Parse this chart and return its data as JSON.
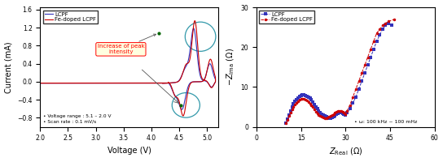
{
  "cv_xlim": [
    2.0,
    5.2
  ],
  "cv_ylim": [
    -1.0,
    1.65
  ],
  "cv_xticks": [
    2.0,
    2.5,
    3.0,
    3.5,
    4.0,
    4.5,
    5.0
  ],
  "cv_yticks": [
    -0.8,
    -0.4,
    0.0,
    0.4,
    0.8,
    1.2,
    1.6
  ],
  "cv_xlabel": "Voltage (V)",
  "cv_ylabel": "Current (mA)",
  "cv_note": "• Voltage range : 5.1 – 2.0 V\n• Scan rate : 0.1 mV/s",
  "cv_annotation": "Increase of peak\nintensity",
  "eis_xlim": [
    0,
    60
  ],
  "eis_ylim": [
    0,
    30
  ],
  "eis_xticks": [
    0,
    15,
    30,
    45,
    60
  ],
  "eis_yticks": [
    0,
    10,
    20,
    30
  ],
  "eis_xlabel": "Z_Real",
  "eis_ylabel": "-Z_Ima",
  "eis_note": "• ω: 100 kHz ~ 100 mHz",
  "color_lcpf": "#3333bb",
  "color_fe": "#cc0000",
  "legend_lcpf": "LCPF",
  "legend_fe": "Fe-doped LCPF",
  "lcpf_semi_zr": [
    10.0,
    10.5,
    11.0,
    11.5,
    12.0,
    12.5,
    13.0,
    13.5,
    14.0,
    14.5,
    15.0,
    15.5,
    16.0,
    16.5,
    17.0,
    17.5,
    18.0,
    18.5,
    19.0,
    19.5,
    20.0,
    20.5,
    21.0,
    21.5,
    22.0,
    22.5,
    23.0,
    23.5,
    24.0,
    24.5,
    25.0,
    25.5,
    26.0,
    26.5,
    27.0,
    27.5,
    28.0,
    28.5,
    29.0,
    29.5,
    30.0
  ],
  "lcpf_semi_zi": [
    1.0,
    2.0,
    3.0,
    4.0,
    5.0,
    5.8,
    6.4,
    6.9,
    7.3,
    7.6,
    7.8,
    8.0,
    8.0,
    7.9,
    7.7,
    7.5,
    7.2,
    6.8,
    6.3,
    5.7,
    5.0,
    4.5,
    4.0,
    3.6,
    3.2,
    3.0,
    2.7,
    2.5,
    2.3,
    2.2,
    2.2,
    2.3,
    2.5,
    2.8,
    3.1,
    3.4,
    3.5,
    3.5,
    3.4,
    3.2,
    3.0
  ],
  "lcpf_tail_zr": [
    30.5,
    31.5,
    32.5,
    33.5,
    34.5,
    35.5,
    36.5,
    37.5,
    38.5,
    39.5,
    40.5,
    41.5,
    42.5,
    43.5,
    44.5,
    45.5
  ],
  "lcpf_tail_zi": [
    3.5,
    4.5,
    6.0,
    7.5,
    9.5,
    11.5,
    13.5,
    15.5,
    17.5,
    19.5,
    21.5,
    23.0,
    24.5,
    25.5,
    26.0,
    25.5
  ],
  "fe_semi_zr": [
    10.0,
    10.5,
    11.0,
    11.5,
    12.0,
    12.5,
    13.0,
    13.5,
    14.0,
    14.5,
    15.0,
    15.5,
    16.0,
    16.5,
    17.0,
    17.5,
    18.0,
    18.5,
    19.0,
    19.5,
    20.0,
    20.5,
    21.0,
    21.5,
    22.0,
    22.5,
    23.0,
    23.5,
    24.0,
    24.5,
    25.0,
    25.5,
    26.0,
    26.5,
    27.0,
    27.5,
    28.0,
    28.5,
    29.0,
    29.5,
    30.0
  ],
  "fe_semi_zi": [
    1.0,
    1.8,
    2.7,
    3.5,
    4.3,
    5.0,
    5.6,
    6.1,
    6.5,
    6.8,
    7.0,
    7.1,
    7.1,
    6.9,
    6.7,
    6.3,
    5.9,
    5.4,
    4.9,
    4.3,
    3.8,
    3.3,
    3.0,
    2.7,
    2.5,
    2.3,
    2.2,
    2.2,
    2.3,
    2.5,
    2.7,
    2.9,
    3.2,
    3.5,
    3.8,
    4.0,
    4.0,
    3.9,
    3.7,
    3.5,
    3.2
  ],
  "fe_tail_zr": [
    30.5,
    31.5,
    32.5,
    33.5,
    34.5,
    35.5,
    36.5,
    37.5,
    38.5,
    39.5,
    40.5,
    41.5,
    42.5,
    43.5,
    44.5,
    46.5
  ],
  "fe_tail_zi": [
    4.0,
    5.5,
    7.5,
    9.5,
    11.5,
    13.5,
    15.5,
    17.5,
    19.5,
    21.5,
    23.5,
    24.5,
    25.5,
    26.0,
    26.5,
    27.0
  ]
}
